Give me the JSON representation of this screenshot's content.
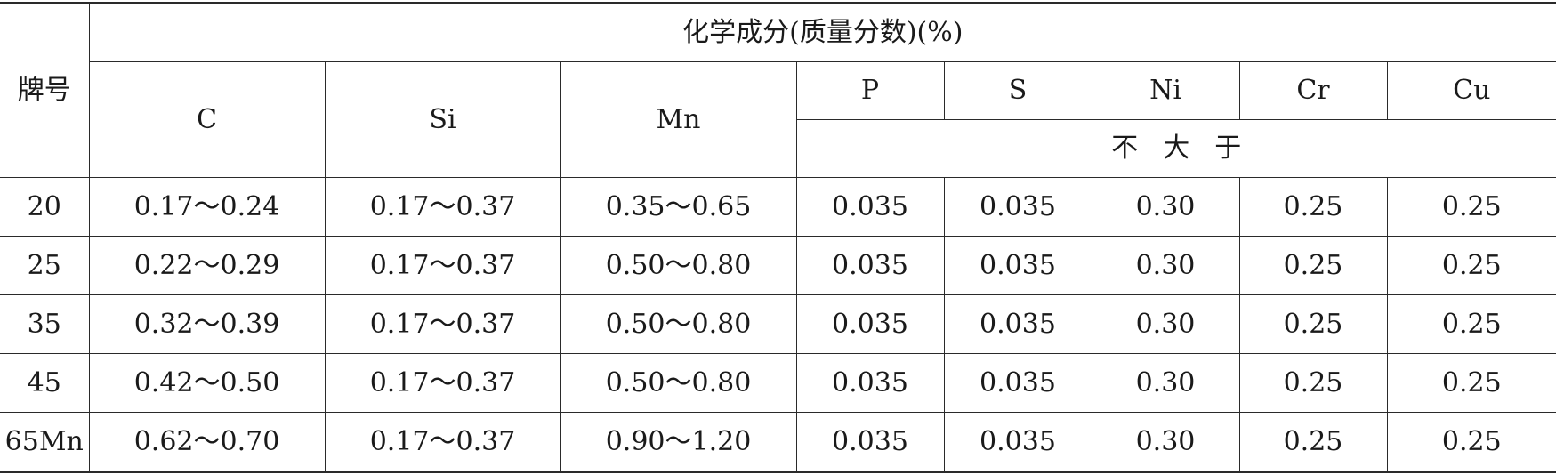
{
  "table": {
    "header": {
      "grade_label": "牌号",
      "group_label": "化学成分(质量分数)(%)",
      "columns": [
        "C",
        "Si",
        "Mn",
        "P",
        "S",
        "Ni",
        "Cr",
        "Cu"
      ],
      "max_note": "不大于"
    },
    "rows": [
      {
        "grade": "20",
        "C": "0.17～0.24",
        "Si": "0.17～0.37",
        "Mn": "0.35～0.65",
        "P": "0.035",
        "S": "0.035",
        "Ni": "0.30",
        "Cr": "0.25",
        "Cu": "0.25"
      },
      {
        "grade": "25",
        "C": "0.22～0.29",
        "Si": "0.17～0.37",
        "Mn": "0.50～0.80",
        "P": "0.035",
        "S": "0.035",
        "Ni": "0.30",
        "Cr": "0.25",
        "Cu": "0.25"
      },
      {
        "grade": "35",
        "C": "0.32～0.39",
        "Si": "0.17～0.37",
        "Mn": "0.50～0.80",
        "P": "0.035",
        "S": "0.035",
        "Ni": "0.30",
        "Cr": "0.25",
        "Cu": "0.25"
      },
      {
        "grade": "45",
        "C": "0.42～0.50",
        "Si": "0.17～0.37",
        "Mn": "0.50～0.80",
        "P": "0.035",
        "S": "0.035",
        "Ni": "0.30",
        "Cr": "0.25",
        "Cu": "0.25"
      },
      {
        "grade": "65Mn",
        "C": "0.62～0.70",
        "Si": "0.17～0.37",
        "Mn": "0.90～1.20",
        "P": "0.035",
        "S": "0.035",
        "Ni": "0.30",
        "Cr": "0.25",
        "Cu": "0.25"
      }
    ]
  }
}
